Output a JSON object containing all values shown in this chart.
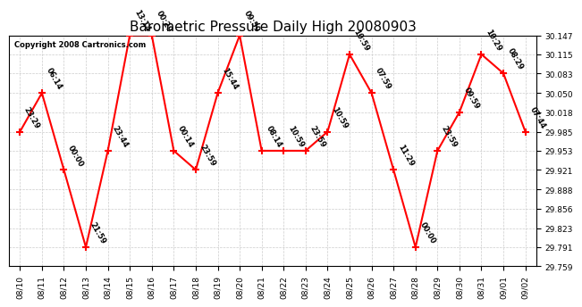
{
  "title": "Barometric Pressure Daily High 20080903",
  "copyright": "Copyright 2008 Cartronics.com",
  "dates": [
    "08/10",
    "08/11",
    "08/12",
    "08/13",
    "08/14",
    "08/15",
    "08/16",
    "08/17",
    "08/18",
    "08/19",
    "08/20",
    "08/21",
    "08/22",
    "08/23",
    "08/24",
    "08/25",
    "08/26",
    "08/27",
    "08/28",
    "08/29",
    "08/30",
    "08/31",
    "09/01",
    "09/02"
  ],
  "values": [
    29.985,
    30.05,
    29.921,
    29.791,
    29.953,
    30.147,
    30.147,
    29.953,
    29.921,
    30.05,
    30.147,
    29.953,
    29.953,
    29.953,
    29.985,
    30.115,
    30.05,
    29.921,
    29.791,
    29.953,
    30.018,
    30.115,
    30.083,
    29.985
  ],
  "annotations": [
    "23:29",
    "06:14",
    "00:00",
    "21:59",
    "23:44",
    "13:14",
    "00:29",
    "00:14",
    "23:59",
    "15:44",
    "09:59",
    "08:14",
    "10:59",
    "23:59",
    "10:59",
    "10:59",
    "07:59",
    "11:29",
    "00:00",
    "23:59",
    "09:59",
    "10:29",
    "08:29",
    "07:44"
  ],
  "ylim_min": 29.759,
  "ylim_max": 30.147,
  "ytick_values": [
    29.759,
    29.791,
    29.823,
    29.856,
    29.888,
    29.921,
    29.953,
    29.985,
    30.018,
    30.05,
    30.083,
    30.115,
    30.147
  ],
  "line_color": "red",
  "marker_color": "red",
  "bg_color": "#ffffff",
  "grid_color": "#cccccc",
  "title_fontsize": 11,
  "annot_fontsize": 6,
  "copyright_fontsize": 6,
  "tick_fontsize": 6.5
}
